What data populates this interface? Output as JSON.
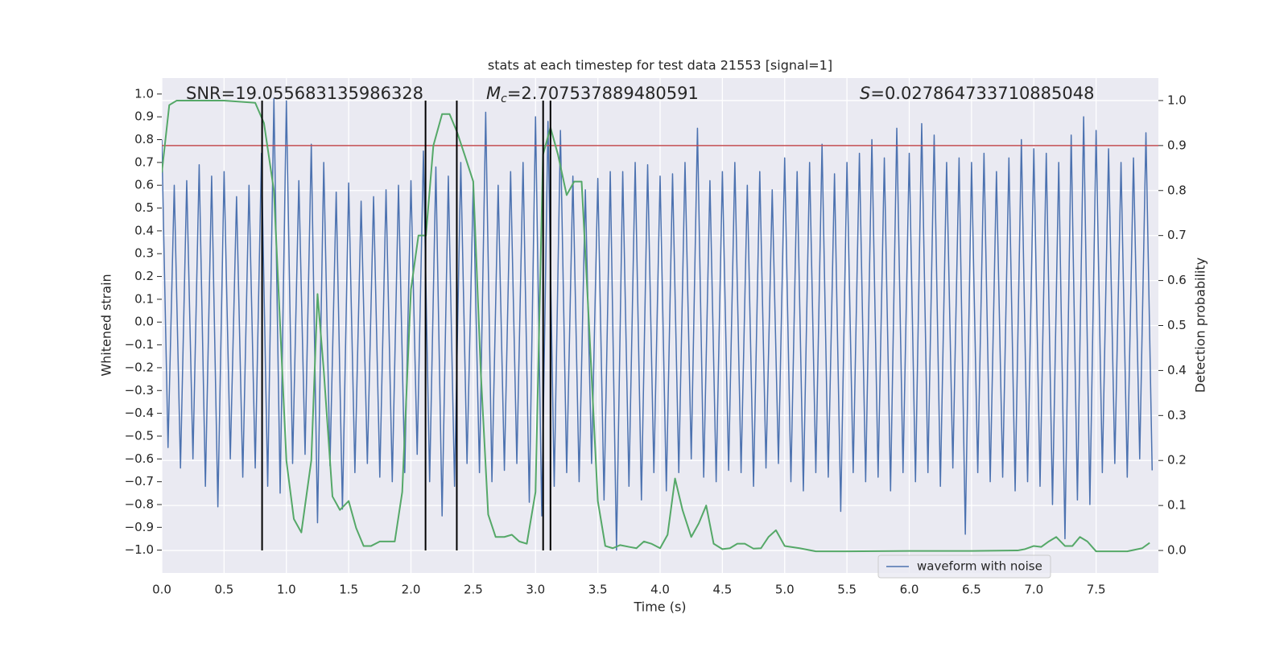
{
  "chart_data": {
    "type": "line",
    "title": "stats at each timestep for test data 21553 [signal=1]",
    "xlabel": "Time (s)",
    "ylabel": "Whitened strain",
    "y2label": "Detection probability",
    "xlim": [
      0,
      8
    ],
    "ylim": [
      -1.1,
      1.07
    ],
    "y2lim": [
      -0.05,
      1.05
    ],
    "grid": true,
    "legend": "lower right",
    "xticks": [
      {
        "value": 0,
        "label": "0.0"
      },
      0.5,
      {
        "value": 1,
        "label": "1.0"
      },
      1.5,
      {
        "value": 2,
        "label": "2.0"
      },
      2.5,
      {
        "value": 3,
        "label": "3.0"
      },
      3.5,
      {
        "value": 4,
        "label": "4.0"
      },
      4.5,
      {
        "value": 5,
        "label": "5.0"
      },
      5.5,
      {
        "value": 6,
        "label": "6.0"
      },
      6.5,
      {
        "value": 7,
        "label": "7.0"
      },
      7.5
    ],
    "yticks": [
      {
        "value": -1,
        "label": "−1.0"
      },
      {
        "value": -0.9,
        "label": "−0.9"
      },
      {
        "value": -0.8,
        "label": "−0.8"
      },
      {
        "value": -0.7,
        "label": "−0.7"
      },
      {
        "value": -0.6,
        "label": "−0.6"
      },
      {
        "value": -0.5,
        "label": "−0.5"
      },
      {
        "value": -0.4,
        "label": "−0.4"
      },
      {
        "value": -0.3,
        "label": "−0.3"
      },
      {
        "value": -0.2,
        "label": "−0.2"
      },
      {
        "value": -0.1,
        "label": "−0.1"
      },
      {
        "value": 0,
        "label": "0.0"
      },
      0.1,
      0.2,
      0.3,
      0.4,
      0.5,
      0.6,
      0.7,
      0.8,
      0.9,
      {
        "value": 1,
        "label": "1.0"
      }
    ],
    "y2ticks": [
      {
        "value": 0,
        "label": "0.0"
      },
      0.1,
      0.2,
      0.3,
      0.4,
      0.5,
      0.6,
      0.7,
      0.8,
      0.9,
      {
        "value": 1,
        "label": "1.0"
      }
    ],
    "annotations": [
      {
        "text": "SNR=19.055683135986328"
      },
      {
        "symbol": "M",
        "subscript": "c",
        "text": "=2.707537889480591"
      },
      {
        "symbol": "S",
        "text": "=0.027864733710885048"
      }
    ],
    "threshold": {
      "value": 0.9,
      "axis": "y2",
      "color": "#c44e52"
    },
    "event_lines": {
      "x": [
        0.805,
        2.117,
        2.368,
        3.061,
        3.12
      ],
      "span": [
        0,
        1
      ],
      "axis": "y2",
      "color": "#000000"
    },
    "series": [
      {
        "name": "waveform with noise",
        "color": "#4c72b0",
        "x": [
          0,
          0.05,
          0.1,
          0.15,
          0.2,
          0.25,
          0.3,
          0.35,
          0.4,
          0.45,
          0.5,
          0.55,
          0.6,
          0.65,
          0.7,
          0.75,
          0.8,
          0.85,
          0.9,
          0.95,
          1,
          1.05,
          1.1,
          1.15,
          1.2,
          1.25,
          1.3,
          1.35,
          1.4,
          1.45,
          1.5,
          1.55,
          1.6,
          1.65,
          1.7,
          1.75,
          1.8,
          1.85,
          1.9,
          1.95,
          2,
          2.05,
          2.1,
          2.15,
          2.2,
          2.25,
          2.3,
          2.35,
          2.4,
          2.45,
          2.5,
          2.55,
          2.6,
          2.65,
          2.7,
          2.75,
          2.8,
          2.85,
          2.9,
          2.95,
          3,
          3.05,
          3.1,
          3.15,
          3.2,
          3.25,
          3.3,
          3.35,
          3.4,
          3.45,
          3.5,
          3.55,
          3.6,
          3.65,
          3.7,
          3.75,
          3.8,
          3.85,
          3.9,
          3.95,
          4,
          4.05,
          4.1,
          4.15,
          4.2,
          4.25,
          4.3,
          4.35,
          4.4,
          4.45,
          4.5,
          4.55,
          4.6,
          4.65,
          4.7,
          4.75,
          4.8,
          4.85,
          4.9,
          4.95,
          5,
          5.05,
          5.1,
          5.15,
          5.2,
          5.25,
          5.3,
          5.35,
          5.4,
          5.45,
          5.5,
          5.55,
          5.6,
          5.65,
          5.7,
          5.75,
          5.8,
          5.85,
          5.9,
          5.95,
          6,
          6.05,
          6.1,
          6.15,
          6.2,
          6.25,
          6.3,
          6.35,
          6.4,
          6.45,
          6.5,
          6.55,
          6.6,
          6.65,
          6.7,
          6.75,
          6.8,
          6.85,
          6.9,
          6.95,
          7,
          7.05,
          7.1,
          7.15,
          7.2,
          7.25,
          7.3,
          7.35,
          7.4,
          7.45,
          7.5,
          7.55,
          7.6,
          7.65,
          7.7,
          7.75,
          7.8,
          7.85,
          7.9,
          7.95
        ],
        "values": [
          0.8,
          -0.55,
          0.6,
          -0.64,
          0.62,
          -0.6,
          0.69,
          -0.72,
          0.64,
          -0.81,
          0.66,
          -0.6,
          0.55,
          -0.68,
          0.6,
          -0.64,
          0.74,
          -0.72,
          0.98,
          -0.75,
          0.97,
          -0.62,
          0.62,
          -0.58,
          0.78,
          -0.88,
          0.7,
          -0.63,
          0.57,
          -0.82,
          0.61,
          -0.66,
          0.53,
          -0.62,
          0.55,
          -0.68,
          0.58,
          -0.7,
          0.6,
          -0.66,
          0.62,
          -0.58,
          0.75,
          -0.7,
          0.68,
          -0.85,
          0.64,
          -0.72,
          0.7,
          -0.62,
          0.6,
          -0.66,
          0.92,
          -0.7,
          0.6,
          -0.65,
          0.66,
          -0.62,
          0.7,
          -0.79,
          0.9,
          -0.85,
          0.88,
          -0.72,
          0.84,
          -0.66,
          0.64,
          -0.7,
          0.58,
          -0.62,
          0.63,
          -0.78,
          0.66,
          -1.0,
          0.66,
          -0.72,
          0.7,
          -0.78,
          0.69,
          -0.66,
          0.64,
          -0.74,
          0.65,
          -0.66,
          0.7,
          -0.6,
          0.85,
          -0.68,
          0.62,
          -0.7,
          0.66,
          -0.65,
          0.7,
          -0.66,
          0.6,
          -0.72,
          0.66,
          -0.64,
          0.58,
          -0.62,
          0.72,
          -0.7,
          0.66,
          -0.74,
          0.7,
          -0.66,
          0.78,
          -0.68,
          0.65,
          -0.83,
          0.7,
          -0.66,
          0.74,
          -0.7,
          0.8,
          -0.68,
          0.72,
          -0.74,
          0.85,
          -0.66,
          0.74,
          -0.7,
          0.87,
          -0.66,
          0.82,
          -0.72,
          0.7,
          -0.64,
          0.72,
          -0.93,
          0.7,
          -0.66,
          0.74,
          -0.7,
          0.66,
          -0.68,
          0.72,
          -0.74,
          0.8,
          -0.7,
          0.76,
          -0.72,
          0.74,
          -0.8,
          0.7,
          -0.95,
          0.82,
          -0.78,
          0.9,
          -0.8,
          0.84,
          -0.66,
          0.76,
          -0.62,
          0.7,
          -0.68,
          0.72,
          -0.6,
          0.83,
          -0.65
        ]
      },
      {
        "color": "#55a868",
        "axis": "y2",
        "x": [
          0,
          0.06,
          0.12,
          0.25,
          0.5,
          0.75,
          0.82,
          0.9,
          1.0,
          1.06,
          1.12,
          1.2,
          1.25,
          1.3,
          1.37,
          1.43,
          1.5,
          1.56,
          1.62,
          1.68,
          1.75,
          1.87,
          1.93,
          2.0,
          2.06,
          2.12,
          2.18,
          2.25,
          2.31,
          2.37,
          2.43,
          2.5,
          2.56,
          2.62,
          2.68,
          2.75,
          2.81,
          2.87,
          2.93,
          3.0,
          3.06,
          3.12,
          3.18,
          3.25,
          3.31,
          3.37,
          3.43,
          3.5,
          3.56,
          3.62,
          3.68,
          3.75,
          3.81,
          3.87,
          3.93,
          4.0,
          4.06,
          4.12,
          4.18,
          4.25,
          4.31,
          4.37,
          4.43,
          4.5,
          4.56,
          4.62,
          4.68,
          4.75,
          4.81,
          4.87,
          4.93,
          5.0,
          5.12,
          5.25,
          5.5,
          6.0,
          6.5,
          6.87,
          6.93,
          7.0,
          7.06,
          7.12,
          7.18,
          7.25,
          7.31,
          7.37,
          7.43,
          7.5,
          7.75,
          7.87,
          7.93
        ],
        "values": [
          0.84,
          0.99,
          1.0,
          1.0,
          1.0,
          0.995,
          0.95,
          0.8,
          0.2,
          0.07,
          0.04,
          0.2,
          0.57,
          0.4,
          0.12,
          0.09,
          0.11,
          0.05,
          0.01,
          0.01,
          0.02,
          0.02,
          0.13,
          0.58,
          0.7,
          0.7,
          0.9,
          0.97,
          0.97,
          0.93,
          0.88,
          0.82,
          0.4,
          0.08,
          0.03,
          0.03,
          0.035,
          0.02,
          0.015,
          0.13,
          0.88,
          0.94,
          0.88,
          0.79,
          0.82,
          0.82,
          0.5,
          0.11,
          0.01,
          0.005,
          0.012,
          0.008,
          0.005,
          0.02,
          0.015,
          0.005,
          0.035,
          0.16,
          0.09,
          0.03,
          0.06,
          0.1,
          0.015,
          0.003,
          0.005,
          0.015,
          0.015,
          0.004,
          0.005,
          0.03,
          0.045,
          0.01,
          0.005,
          -0.002,
          -0.002,
          -0.001,
          -0.001,
          0,
          0.003,
          0.01,
          0.008,
          0.02,
          0.03,
          0.01,
          0.01,
          0.03,
          0.02,
          -0.002,
          -0.002,
          0.005,
          0.017
        ]
      }
    ]
  }
}
